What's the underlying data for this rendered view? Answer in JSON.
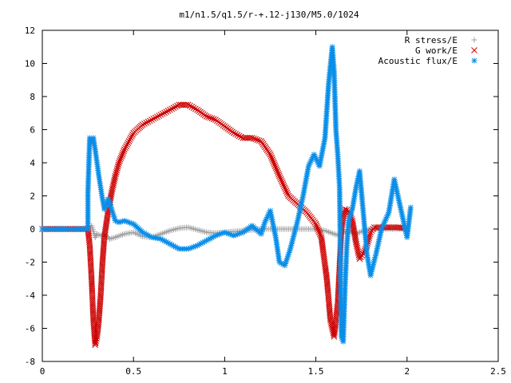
{
  "chart_data": {
    "type": "scatter",
    "title": "m1/n1.5/q1.5/r-+.12-j130/M5.0/1024",
    "xlim": [
      0,
      2.5
    ],
    "ylim": [
      -8,
      12
    ],
    "xticks": [
      0,
      0.5,
      1,
      1.5,
      2,
      2.5
    ],
    "xtick_labels": [
      "0",
      "0.5",
      "1",
      "1.5",
      "2",
      "2.5"
    ],
    "yticks": [
      -8,
      -6,
      -4,
      -2,
      0,
      2,
      4,
      6,
      8,
      10,
      12
    ],
    "ytick_labels": [
      "-8",
      "-6",
      "-4",
      "-2",
      "0",
      "2",
      "4",
      "6",
      "8",
      "10",
      "12"
    ],
    "grid": false,
    "legend_position": "top-right",
    "series": [
      {
        "name": "R stress/E",
        "marker": "plus",
        "color": "#a0a0a0",
        "x": [
          0,
          0.1,
          0.2,
          0.25,
          0.27,
          0.29,
          0.3,
          0.32,
          0.34,
          0.37,
          0.4,
          0.45,
          0.5,
          0.55,
          0.6,
          0.65,
          0.7,
          0.75,
          0.8,
          0.85,
          0.9,
          0.95,
          1.0,
          1.05,
          1.1,
          1.15,
          1.2,
          1.25,
          1.3,
          1.35,
          1.4,
          1.45,
          1.5,
          1.55,
          1.6,
          1.63,
          1.65,
          1.68,
          1.72,
          1.76,
          1.8,
          1.85,
          1.9,
          1.95,
          2.0
        ],
        "y": [
          0,
          0,
          0,
          0,
          0.2,
          -0.5,
          -0.3,
          -0.4,
          -0.3,
          -0.6,
          -0.5,
          -0.3,
          -0.2,
          -0.45,
          -0.5,
          -0.3,
          -0.1,
          0.05,
          0.1,
          -0.05,
          -0.2,
          -0.25,
          -0.2,
          -0.15,
          -0.1,
          -0.05,
          0,
          0,
          0,
          0,
          0,
          0,
          0,
          -0.1,
          -0.3,
          -0.4,
          -0.2,
          -0.1,
          -0.3,
          -0.1,
          0,
          0,
          0,
          0,
          0
        ]
      },
      {
        "name": "G work/E",
        "marker": "cross",
        "color": "#cc0000",
        "x": [
          0,
          0.1,
          0.2,
          0.25,
          0.26,
          0.27,
          0.28,
          0.29,
          0.3,
          0.31,
          0.32,
          0.33,
          0.34,
          0.36,
          0.38,
          0.4,
          0.42,
          0.45,
          0.5,
          0.55,
          0.6,
          0.65,
          0.7,
          0.75,
          0.8,
          0.85,
          0.9,
          0.95,
          1.0,
          1.05,
          1.1,
          1.15,
          1.2,
          1.25,
          1.3,
          1.35,
          1.4,
          1.45,
          1.5,
          1.53,
          1.56,
          1.58,
          1.6,
          1.62,
          1.64,
          1.66,
          1.68,
          1.7,
          1.72,
          1.74,
          1.76,
          1.78,
          1.8,
          1.82,
          1.85,
          1.9,
          1.95,
          2.0
        ],
        "y": [
          0,
          0,
          0,
          0,
          -1,
          -3,
          -5.5,
          -7,
          -6.5,
          -5.5,
          -4,
          -2,
          -0.5,
          1,
          2.2,
          3.2,
          4,
          4.8,
          5.8,
          6.3,
          6.6,
          6.9,
          7.2,
          7.5,
          7.5,
          7.2,
          6.8,
          6.6,
          6.2,
          5.8,
          5.5,
          5.5,
          5.3,
          4.5,
          3.2,
          2,
          1.5,
          1,
          0.3,
          -0.5,
          -3,
          -5.5,
          -6.5,
          -4.5,
          0,
          1.2,
          1.1,
          0.5,
          -0.8,
          -1.8,
          -1.5,
          -1,
          -0.2,
          0.1,
          0.1,
          0.1,
          0.1,
          0.05
        ]
      },
      {
        "name": "Acoustic flux/E",
        "marker": "star",
        "color": "#0a8ee8",
        "x": [
          0,
          0.1,
          0.2,
          0.25,
          0.25,
          0.26,
          0.27,
          0.28,
          0.29,
          0.3,
          0.31,
          0.32,
          0.33,
          0.34,
          0.35,
          0.36,
          0.37,
          0.38,
          0.4,
          0.42,
          0.45,
          0.5,
          0.55,
          0.6,
          0.65,
          0.7,
          0.75,
          0.8,
          0.85,
          0.9,
          0.95,
          1.0,
          1.05,
          1.1,
          1.15,
          1.2,
          1.22,
          1.25,
          1.28,
          1.3,
          1.33,
          1.36,
          1.4,
          1.43,
          1.46,
          1.49,
          1.52,
          1.55,
          1.57,
          1.59,
          1.6,
          1.61,
          1.62,
          1.63,
          1.64,
          1.65,
          1.66,
          1.67,
          1.68,
          1.7,
          1.72,
          1.74,
          1.76,
          1.78,
          1.8,
          1.83,
          1.86,
          1.9,
          1.93,
          1.96,
          2.0,
          2.02
        ],
        "y": [
          0,
          0,
          0,
          0,
          2.2,
          5.5,
          5.2,
          5.5,
          4.8,
          4,
          3.2,
          2.5,
          1.8,
          1.2,
          1.5,
          1.8,
          1.6,
          1.2,
          0.5,
          0.4,
          0.5,
          0.3,
          -0.2,
          -0.5,
          -0.6,
          -0.9,
          -1.2,
          -1.2,
          -1.0,
          -0.7,
          -0.4,
          -0.2,
          -0.4,
          -0.2,
          0.2,
          -0.3,
          0.4,
          1.1,
          -0.5,
          -2.0,
          -2.2,
          -1.2,
          0.5,
          2.0,
          3.8,
          4.5,
          3.8,
          5.5,
          8.8,
          11.0,
          9.5,
          6.0,
          4.5,
          2.5,
          -6.5,
          -6.8,
          -3.5,
          -1.0,
          0.5,
          1.2,
          2.5,
          3.5,
          1.0,
          -1.5,
          -2.8,
          -1.5,
          0,
          1.0,
          3.0,
          1.5,
          -0.5,
          1.3
        ]
      }
    ]
  }
}
